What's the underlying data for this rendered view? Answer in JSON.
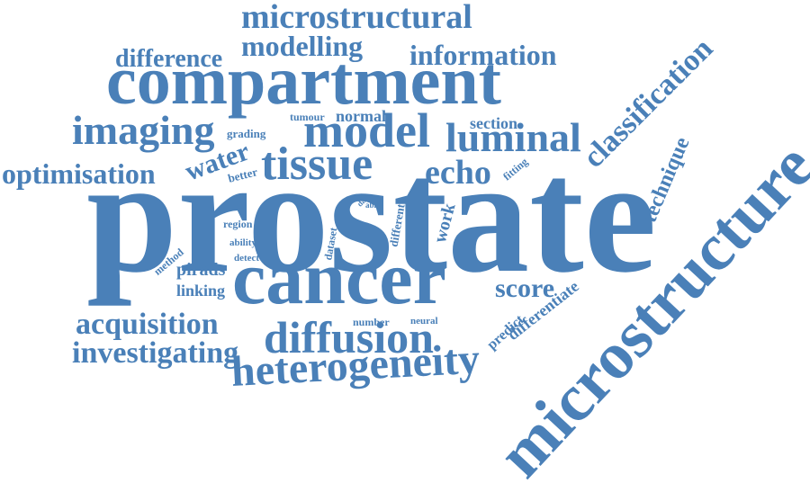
{
  "color": "#4a80b8",
  "words": {
    "prostate": "prostate",
    "microstructure": "microstructure",
    "cancer": "cancer",
    "compartment": "compartment",
    "tissue": "tissue",
    "model": "model",
    "luminal": "luminal",
    "diffusion": "diffusion",
    "heterogeneity": "heterogeneity",
    "imaging": "imaging",
    "microstructural": "microstructural",
    "modelling": "modelling",
    "information": "information",
    "difference": "difference",
    "classification": "classification",
    "optimisation": "optimisation",
    "water": "water",
    "echo": "echo",
    "acquisition": "acquisition",
    "investigating": "investigating",
    "score": "score",
    "technique": "technique",
    "section": "section",
    "normal": "normal",
    "tumour": "tumour",
    "grading": "grading",
    "better": "better",
    "fitting": "fitting",
    "region": "region",
    "ability": "ability",
    "detect": "detect",
    "method": "method",
    "pirads": "pirads",
    "linking": "linking",
    "dataset": "dataset",
    "data": "data",
    "able": "able",
    "different": "different",
    "work": "work",
    "number": "number",
    "neural": "neural",
    "predict": "predict",
    "differentiate": "differentiate"
  }
}
